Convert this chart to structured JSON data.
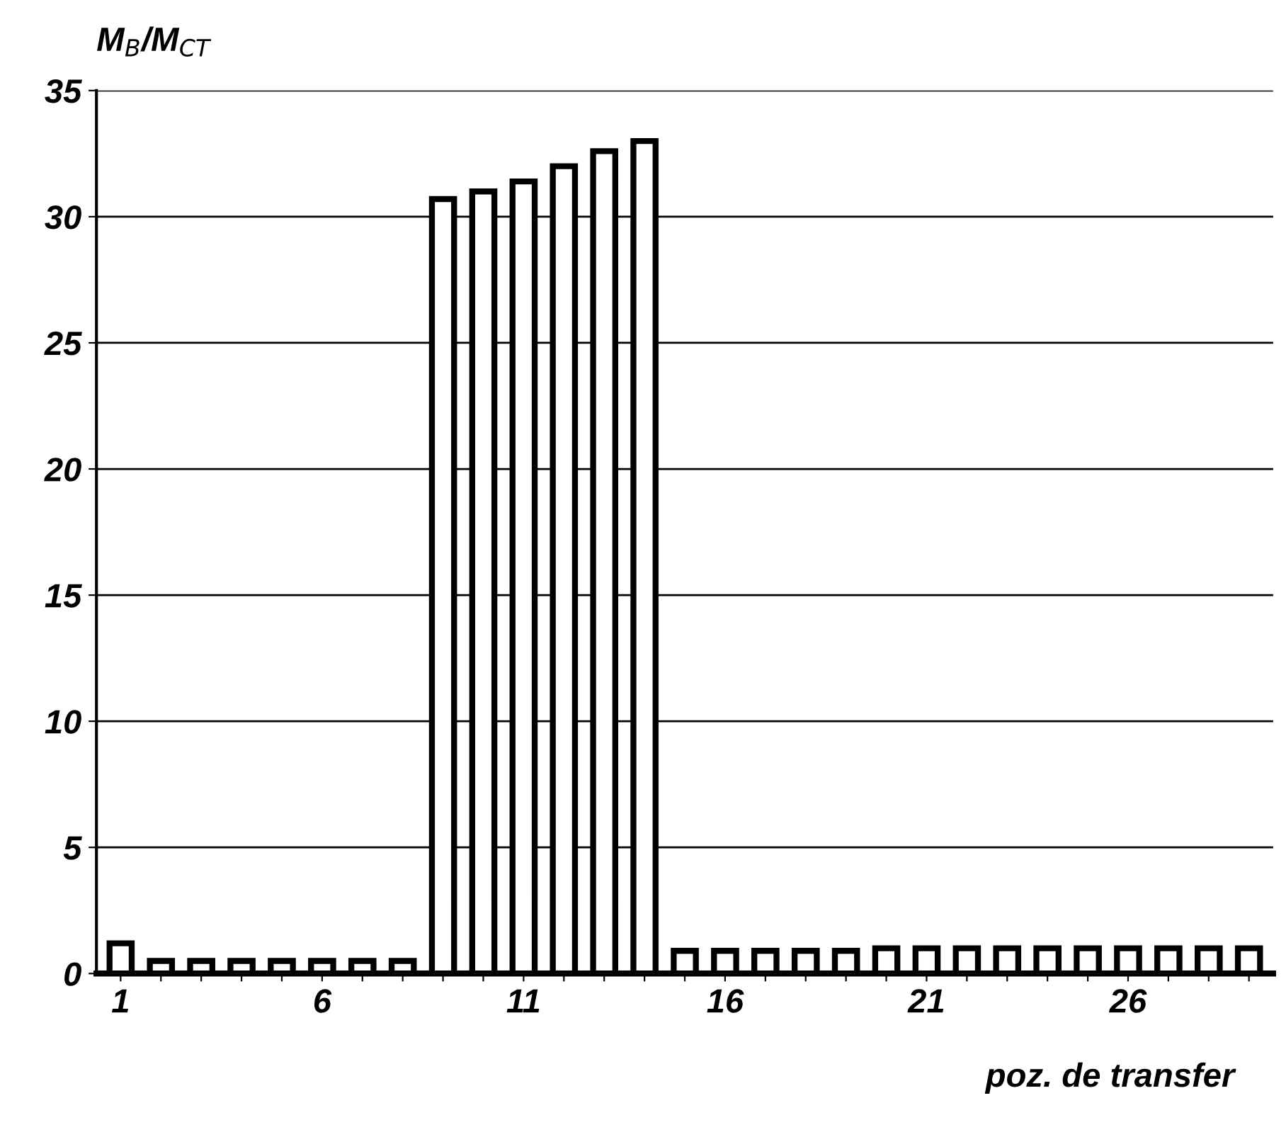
{
  "chart_data": {
    "type": "bar",
    "ylabel": "M$_{B}$/M$_{CT}$",
    "xlabel": "poz. de transfer",
    "categories": [
      "1",
      null,
      null,
      null,
      null,
      "6",
      null,
      null,
      null,
      null,
      "11",
      null,
      null,
      null,
      null,
      "16",
      null,
      null,
      null,
      null,
      "21",
      null,
      null,
      null,
      null,
      "26",
      null,
      null,
      null
    ],
    "values": [
      1.2,
      0.5,
      0.5,
      0.5,
      0.5,
      0.5,
      0.5,
      0.5,
      30.7,
      31.0,
      31.4,
      32.0,
      32.6,
      33.0,
      0.9,
      0.9,
      0.9,
      0.9,
      0.9,
      1.0,
      1.0,
      1.0,
      1.0,
      1.0,
      1.0,
      1.0,
      1.0,
      1.0,
      1.0
    ],
    "color": "#ffffff",
    "ylim": [
      0,
      35
    ],
    "yticks": [
      0,
      5,
      10,
      15,
      20,
      25,
      30,
      35
    ],
    "grid": "y"
  }
}
